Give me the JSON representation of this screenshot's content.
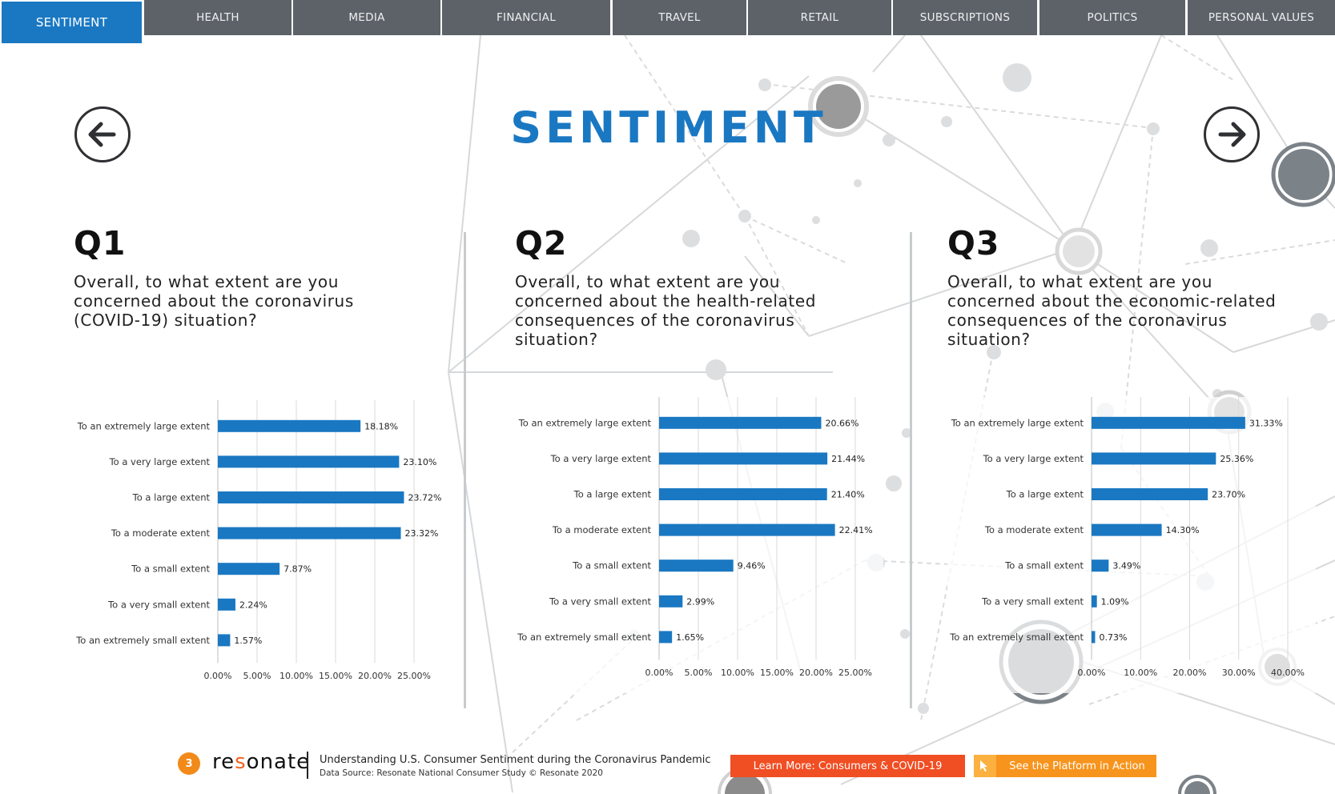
{
  "nav": {
    "tabs": [
      {
        "label": "SENTIMENT",
        "active": true
      },
      {
        "label": "HEALTH",
        "active": false
      },
      {
        "label": "MEDIA",
        "active": false
      },
      {
        "label": "FINANCIAL",
        "active": false
      },
      {
        "label": "TRAVEL",
        "active": false
      },
      {
        "label": "RETAIL",
        "active": false
      },
      {
        "label": "SUBSCRIPTIONS",
        "active": false
      },
      {
        "label": "POLITICS",
        "active": false
      },
      {
        "label": "PERSONAL VALUES",
        "active": false
      }
    ]
  },
  "page": {
    "title": "SENTIMENT",
    "prev_icon": "arrow-left-icon",
    "next_icon": "arrow-right-icon"
  },
  "questions": [
    {
      "number": "Q1",
      "text": "Overall, to what extent are you concerned about the coronavirus (COVID-19) situation?"
    },
    {
      "number": "Q2",
      "text": "Overall, to what extent are you concerned about the health-related consequences of the coronavirus situation?"
    },
    {
      "number": "Q3",
      "text": "Overall, to what extent are you concerned about the economic-related consequences of the coronavirus situation?"
    }
  ],
  "chart_data": [
    {
      "type": "bar",
      "orientation": "horizontal",
      "categories": [
        "To an extremely large extent",
        "To a very large extent",
        "To a large extent",
        "To a moderate extent",
        "To a small extent",
        "To a very small extent",
        "To an extremely small extent"
      ],
      "values": [
        18.18,
        23.1,
        23.72,
        23.32,
        7.87,
        2.24,
        1.57
      ],
      "value_labels": [
        "18.18%",
        "23.10%",
        "23.72%",
        "23.32%",
        "7.87%",
        "2.24%",
        "1.57%"
      ],
      "xticks": [
        "0.00%",
        "5.00%",
        "10.00%",
        "15.00%",
        "20.00%",
        "25.00%"
      ],
      "xlim": [
        0,
        25
      ],
      "grid": true,
      "color": "#1a78c2"
    },
    {
      "type": "bar",
      "orientation": "horizontal",
      "categories": [
        "To an extremely large extent",
        "To a very large extent",
        "To a large extent",
        "To a moderate extent",
        "To a small extent",
        "To a very small extent",
        "To an extremely small extent"
      ],
      "values": [
        20.66,
        21.44,
        21.4,
        22.41,
        9.46,
        2.99,
        1.65
      ],
      "value_labels": [
        "20.66%",
        "21.44%",
        "21.40%",
        "22.41%",
        "9.46%",
        "2.99%",
        "1.65%"
      ],
      "xticks": [
        "0.00%",
        "5.00%",
        "10.00%",
        "15.00%",
        "20.00%",
        "25.00%"
      ],
      "xlim": [
        0,
        25
      ],
      "grid": true,
      "color": "#1a78c2"
    },
    {
      "type": "bar",
      "orientation": "horizontal",
      "categories": [
        "To an extremely large extent",
        "To a very large extent",
        "To a large extent",
        "To a moderate extent",
        "To a small extent",
        "To a very small extent",
        "To an extremely small extent"
      ],
      "values": [
        31.33,
        25.36,
        23.7,
        14.3,
        3.49,
        1.09,
        0.73
      ],
      "value_labels": [
        "31.33%",
        "25.36%",
        "23.70%",
        "14.30%",
        "3.49%",
        "1.09%",
        "0.73%"
      ],
      "xticks": [
        "0.00%",
        "10.00%",
        "20.00%",
        "30.00%",
        "40.00%"
      ],
      "xlim": [
        0,
        40
      ],
      "grid": true,
      "color": "#1a78c2"
    }
  ],
  "footer": {
    "page_number": "3",
    "logo_pre": "re",
    "logo_dot": "s",
    "logo_post": "onate",
    "title": "Understanding U.S. Consumer Sentiment during the Coronavirus Pandemic",
    "source": "Data Source: Resonate National Consumer Study © Resonate 2020",
    "learn_more_label": "Learn More: Consumers & COVID-19",
    "platform_label": "See the Platform in Action",
    "platform_icon": "pointer-icon"
  }
}
